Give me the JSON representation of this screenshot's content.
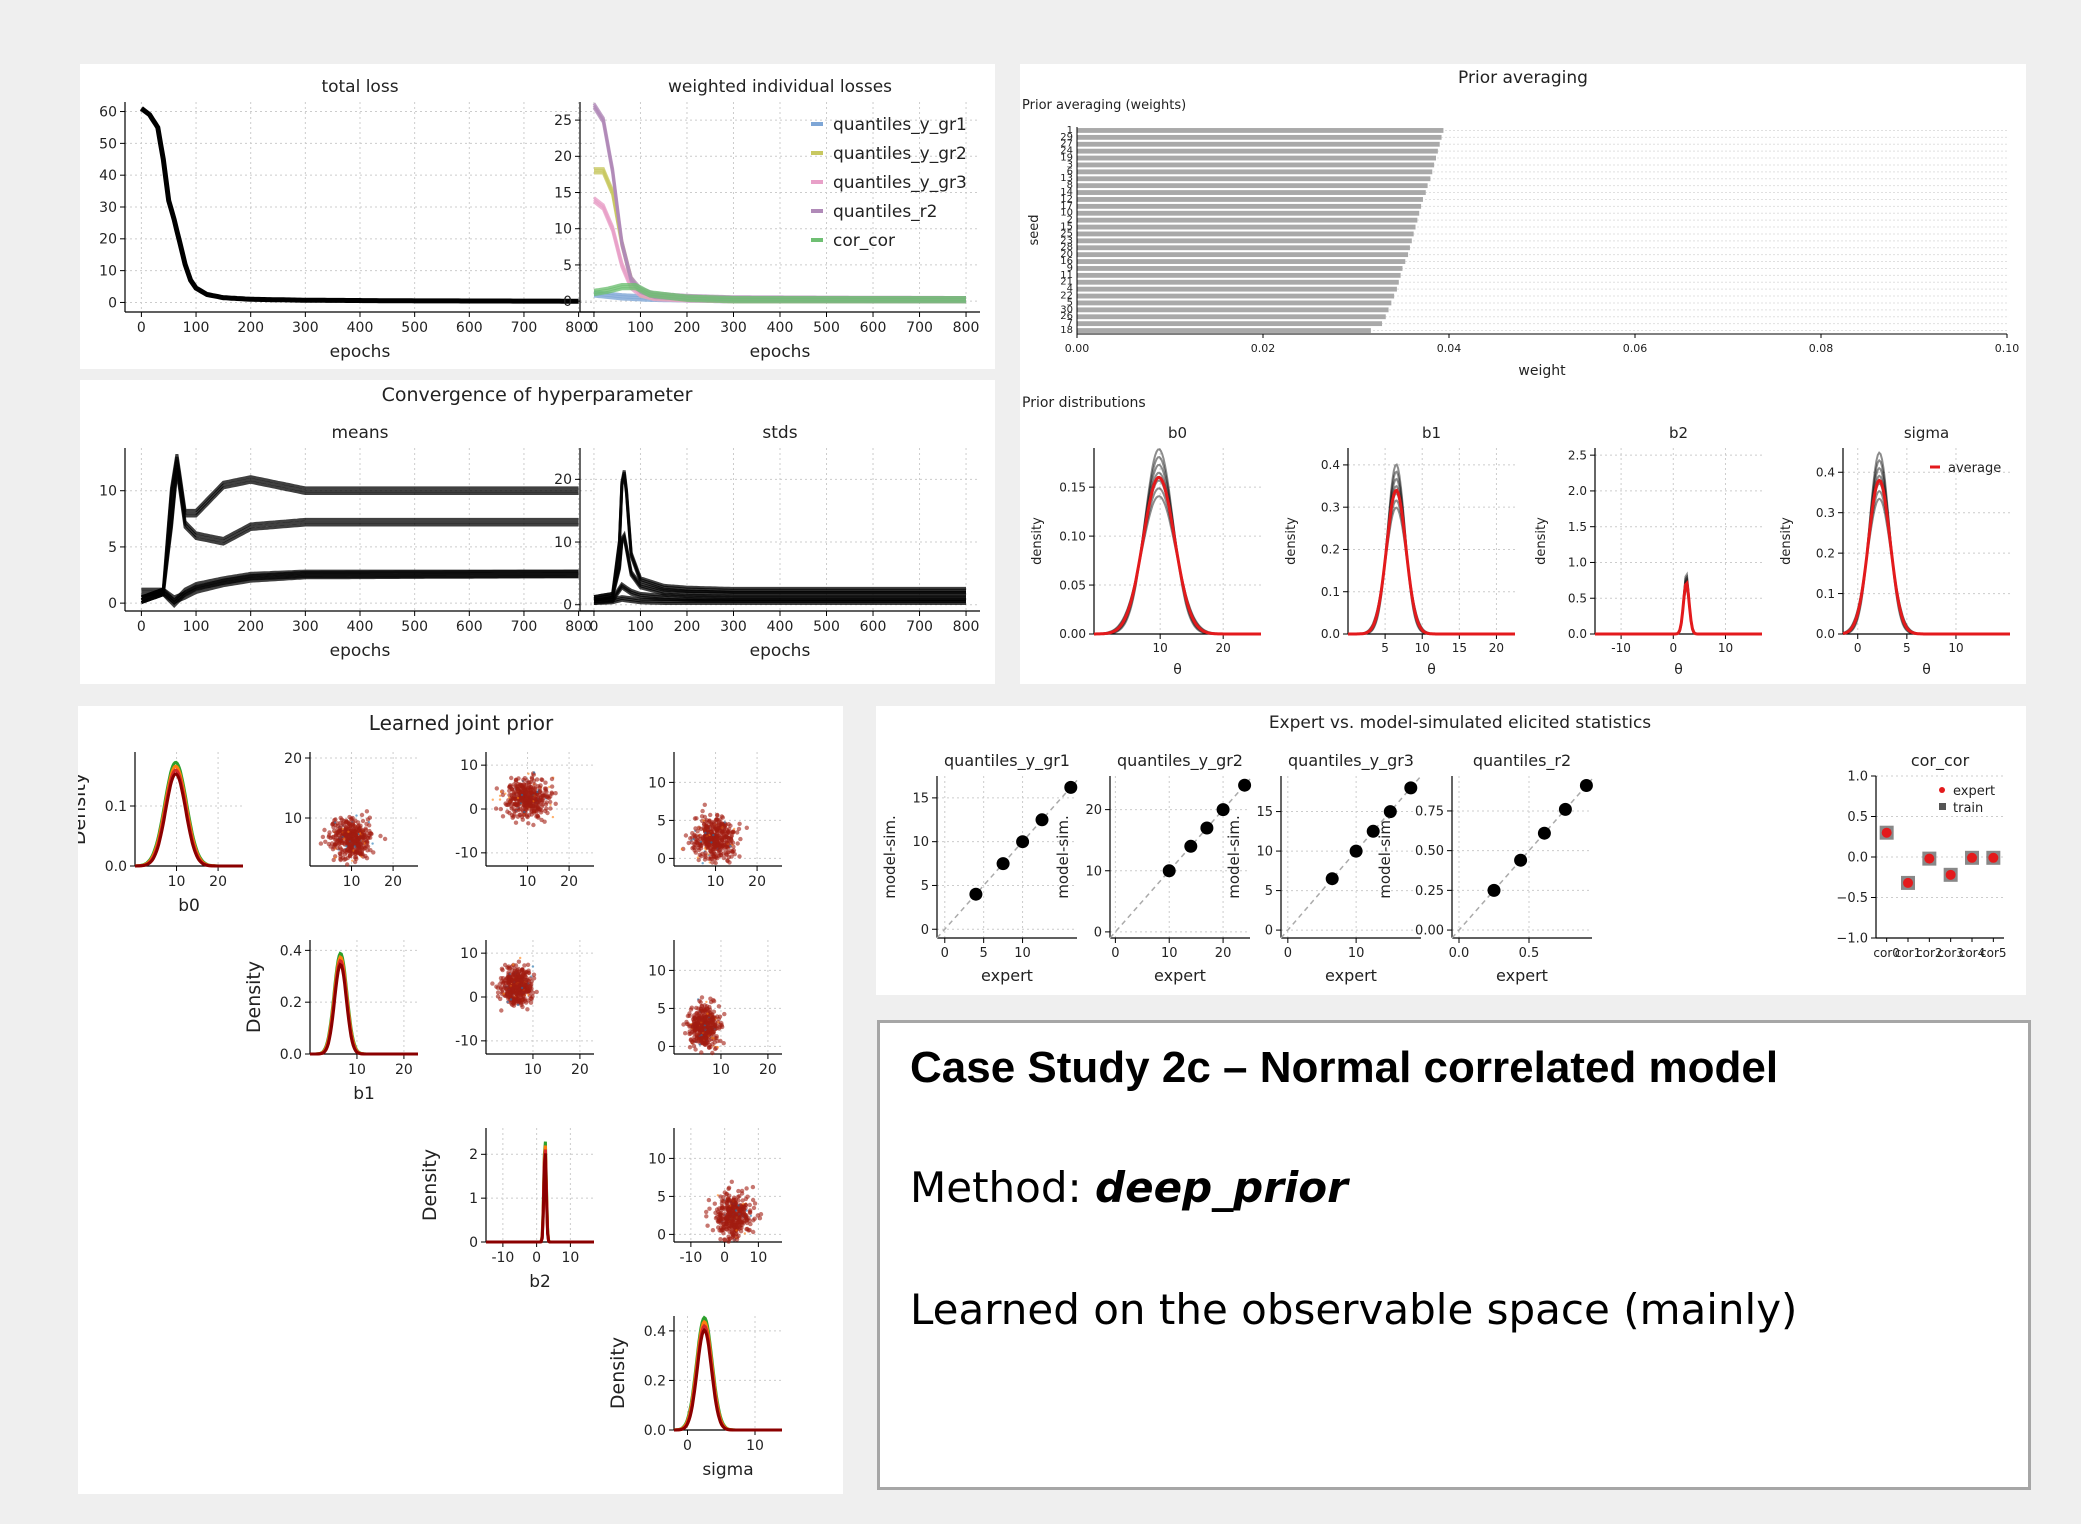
{
  "textbox": {
    "title": "Case Study 2c – Normal correlated model",
    "method_label": "Method: ",
    "method_value": "deep_prior",
    "note": "Learned on the observable space (mainly)"
  },
  "colors": {
    "grid": "#cccccc",
    "black": "#000000",
    "red": "#e31a1c",
    "gray": "#a9a9a9"
  },
  "chart_data": [
    {
      "id": "total_loss",
      "type": "line",
      "title": "total loss",
      "xlabel": "epochs",
      "ylabel": "",
      "xlim": [
        -30,
        830
      ],
      "ylim": [
        -3,
        63
      ],
      "xticks": [
        0,
        100,
        200,
        300,
        400,
        500,
        600,
        700,
        800
      ],
      "yticks": [
        0,
        10,
        20,
        30,
        40,
        50,
        60
      ],
      "series": [
        {
          "x": [
            0,
            15,
            30,
            40,
            50,
            60,
            70,
            80,
            90,
            100,
            120,
            150,
            200,
            300,
            500,
            800
          ],
          "y": [
            61,
            59,
            55,
            45,
            32,
            26,
            19,
            12,
            7,
            4.5,
            2.5,
            1.5,
            1,
            0.7,
            0.5,
            0.4
          ]
        }
      ]
    },
    {
      "id": "weighted_losses",
      "type": "line",
      "title": "weighted individual losses",
      "xlabel": "epochs",
      "ylabel": "",
      "xlim": [
        -30,
        830
      ],
      "ylim": [
        -1.5,
        27.5
      ],
      "xticks": [
        0,
        100,
        200,
        300,
        400,
        500,
        600,
        700,
        800
      ],
      "yticks": [
        0,
        5,
        10,
        15,
        20,
        25
      ],
      "legend": [
        "quantiles_y_gr1",
        "quantiles_y_gr2",
        "quantiles_y_gr3",
        "quantiles_r2",
        "cor_cor"
      ],
      "series": [
        {
          "name": "quantiles_y_gr1",
          "color": "#7ea6d6",
          "x": [
            0,
            30,
            60,
            90,
            120,
            200,
            300,
            800
          ],
          "y": [
            1,
            0.8,
            0.6,
            0.5,
            0.4,
            0.3,
            0.2,
            0.2
          ]
        },
        {
          "name": "quantiles_y_gr2",
          "color": "#c8c860",
          "x": [
            0,
            20,
            40,
            60,
            80,
            100,
            130,
            200,
            300,
            800
          ],
          "y": [
            18,
            18,
            15,
            8,
            3,
            1,
            0.6,
            0.4,
            0.2,
            0.2
          ]
        },
        {
          "name": "quantiles_y_gr3",
          "color": "#e8a0c8",
          "x": [
            0,
            20,
            40,
            60,
            80,
            100,
            130,
            200,
            300,
            800
          ],
          "y": [
            14,
            13,
            10,
            5,
            2,
            1,
            0.5,
            0.3,
            0.2,
            0.2
          ]
        },
        {
          "name": "quantiles_r2",
          "color": "#b08ab8",
          "x": [
            0,
            20,
            40,
            60,
            80,
            100,
            130,
            200,
            300,
            800
          ],
          "y": [
            27,
            25,
            18,
            8,
            3,
            1.5,
            0.8,
            0.5,
            0.3,
            0.2
          ]
        },
        {
          "name": "cor_cor",
          "color": "#6fbf73",
          "x": [
            0,
            30,
            60,
            90,
            120,
            200,
            300,
            800
          ],
          "y": [
            1.2,
            1.5,
            2,
            2,
            1,
            0.4,
            0.2,
            0.2
          ]
        }
      ]
    },
    {
      "id": "prior_weights",
      "type": "bar",
      "orientation": "horizontal",
      "title": "Prior averaging",
      "subtitle": "Prior averaging (weights)",
      "xlabel": "weight",
      "ylabel": "seed",
      "xlim": [
        0,
        0.1
      ],
      "xticks": [
        "0.00",
        "0.02",
        "0.04",
        "0.06",
        "0.08",
        "0.10"
      ],
      "categories": [
        "1",
        "29",
        "27",
        "24",
        "19",
        "3",
        "6",
        "13",
        "8",
        "14",
        "12",
        "17",
        "10",
        "2",
        "15",
        "25",
        "23",
        "28",
        "20",
        "16",
        "9",
        "11",
        "21",
        "4",
        "22",
        "5",
        "30",
        "26",
        "7",
        "18"
      ],
      "values": [
        0.0394,
        0.0392,
        0.039,
        0.0388,
        0.0386,
        0.0384,
        0.0382,
        0.038,
        0.0377,
        0.0375,
        0.0372,
        0.037,
        0.0368,
        0.0366,
        0.0364,
        0.0362,
        0.036,
        0.0358,
        0.0356,
        0.0353,
        0.035,
        0.0348,
        0.0346,
        0.0344,
        0.0341,
        0.0338,
        0.0335,
        0.0332,
        0.0328,
        0.0316
      ]
    },
    {
      "id": "means",
      "type": "line",
      "title": "means",
      "supertitle": "Convergence of hyperparameter",
      "xlabel": "epochs",
      "xlim": [
        -30,
        830
      ],
      "ylim": [
        -0.7,
        13.8
      ],
      "xticks": [
        0,
        100,
        200,
        300,
        400,
        500,
        600,
        700,
        800
      ],
      "yticks": [
        0,
        5,
        10
      ],
      "series": [
        {
          "x": [
            0,
            40,
            55,
            65,
            80,
            100,
            150,
            200,
            300,
            800
          ],
          "y": [
            0.3,
            1,
            10,
            13,
            8,
            8,
            10.5,
            11,
            10,
            10
          ]
        },
        {
          "x": [
            0,
            40,
            55,
            65,
            80,
            100,
            150,
            200,
            300,
            800
          ],
          "y": [
            0.3,
            1,
            7,
            12,
            7,
            6,
            5.5,
            6.8,
            7.2,
            7.2
          ]
        },
        {
          "x": [
            0,
            40,
            60,
            80,
            100,
            150,
            200,
            300,
            800
          ],
          "y": [
            0.3,
            1,
            0,
            1,
            1.5,
            2,
            2.4,
            2.6,
            2.6
          ]
        },
        {
          "x": [
            0,
            40,
            60,
            80,
            100,
            150,
            200,
            300,
            800
          ],
          "y": [
            1,
            1,
            0.3,
            0.7,
            1.2,
            1.8,
            2.2,
            2.5,
            2.6
          ]
        }
      ]
    },
    {
      "id": "stds",
      "type": "line",
      "title": "stds",
      "xlabel": "epochs",
      "xlim": [
        -30,
        830
      ],
      "ylim": [
        -1,
        25
      ],
      "xticks": [
        0,
        100,
        200,
        300,
        400,
        500,
        600,
        700,
        800
      ],
      "yticks": [
        0,
        10,
        20
      ],
      "series": [
        {
          "x": [
            0,
            40,
            55,
            62,
            70,
            80,
            100,
            150,
            200,
            300,
            800
          ],
          "y": [
            1,
            1.5,
            10,
            23,
            18,
            8,
            4,
            2.8,
            2.5,
            2.3,
            2.3
          ]
        },
        {
          "x": [
            0,
            40,
            55,
            62,
            70,
            80,
            100,
            150,
            200,
            300,
            800
          ],
          "y": [
            1,
            1.5,
            6,
            12,
            9,
            5,
            3,
            2,
            1.8,
            1.7,
            1.7
          ]
        },
        {
          "x": [
            0,
            40,
            60,
            80,
            100,
            150,
            200,
            300,
            800
          ],
          "y": [
            0.5,
            0.8,
            3,
            2,
            1.5,
            1.2,
            1,
            0.9,
            0.9
          ]
        },
        {
          "x": [
            0,
            40,
            60,
            80,
            100,
            150,
            200,
            300,
            800
          ],
          "y": [
            0.5,
            0.6,
            1,
            0.8,
            0.6,
            0.5,
            0.5,
            0.5,
            0.5
          ]
        }
      ]
    },
    {
      "id": "prior_distributions",
      "type": "line",
      "title": "Prior distributions",
      "xlabel": "θ",
      "ylabel": "density",
      "legend": [
        "average"
      ],
      "panels": [
        {
          "name": "b0",
          "xlim": [
            -0.5,
            26
          ],
          "ylim": [
            0,
            0.19
          ],
          "xticks": [
            10,
            20
          ],
          "yticks": [
            "0.00",
            "0.05",
            "0.10",
            "0.15"
          ],
          "mu": 9.8,
          "sigma": 2.5,
          "peak": 0.16
        },
        {
          "name": "b1",
          "xlim": [
            0,
            22.5
          ],
          "ylim": [
            0,
            0.44
          ],
          "xticks": [
            5,
            10,
            15,
            20
          ],
          "yticks": [
            "0.0",
            "0.1",
            "0.2",
            "0.3",
            "0.4"
          ],
          "mu": 6.5,
          "sigma": 1.3,
          "peak": 0.34
        },
        {
          "name": "b2",
          "xlim": [
            -15,
            17
          ],
          "ylim": [
            0,
            2.6
          ],
          "xticks": [
            -10,
            0,
            10
          ],
          "yticks": [
            "0.0",
            "0.5",
            "1.0",
            "1.5",
            "2.0",
            "2.5"
          ],
          "mu": 2.5,
          "sigma": 0.55,
          "peak": 0.72
        },
        {
          "name": "sigma",
          "xlim": [
            -1.5,
            15.5
          ],
          "ylim": [
            0,
            0.46
          ],
          "xticks": [
            0,
            5,
            10
          ],
          "yticks": [
            "0.0",
            "0.1",
            "0.2",
            "0.3",
            "0.4"
          ],
          "mu": 2.2,
          "sigma": 1.1,
          "peak": 0.38
        }
      ]
    },
    {
      "id": "joint_prior",
      "type": "scatter",
      "title": "Learned joint prior",
      "ylabel": "Density",
      "variables": [
        "b0",
        "b1",
        "b2",
        "sigma"
      ]
    },
    {
      "id": "elicited_stats",
      "type": "scatter",
      "title": "Expert vs. model-simulated elicited statistics",
      "xlabel": "expert",
      "ylabel": "model-sim.",
      "panels": [
        {
          "name": "quantiles_y_gr1",
          "xlim": [
            -1,
            17
          ],
          "ylim": [
            -1,
            17.5
          ],
          "xticks": [
            0,
            5,
            10
          ],
          "yticks": [
            0,
            5,
            10,
            15
          ],
          "points": [
            4,
            7.5,
            10,
            12.5,
            16.2
          ]
        },
        {
          "name": "quantiles_y_gr2",
          "xlim": [
            -1,
            25
          ],
          "ylim": [
            -1,
            25.5
          ],
          "xticks": [
            0,
            10,
            20
          ],
          "yticks": [
            0,
            10,
            20
          ],
          "points": [
            10,
            14,
            17,
            20,
            24
          ]
        },
        {
          "name": "quantiles_y_gr3",
          "xlim": [
            -1,
            19.5
          ],
          "ylim": [
            -1,
            19.5
          ],
          "xticks": [
            0,
            10
          ],
          "yticks": [
            0,
            5,
            10,
            15
          ],
          "points": [
            6.5,
            10,
            12.5,
            15,
            18
          ]
        },
        {
          "name": "quantiles_r2",
          "xlim": [
            -0.05,
            0.95
          ],
          "ylim": [
            -0.05,
            0.97
          ],
          "xticks": [
            "0.0",
            "0.5"
          ],
          "yticks": [
            "0.00",
            "0.25",
            "0.50",
            "0.75"
          ],
          "points": [
            0.25,
            0.44,
            0.61,
            0.76,
            0.91
          ]
        }
      ],
      "cor_panel": {
        "name": "cor_cor",
        "ylim": [
          -1,
          1
        ],
        "yticks": [
          "−1.0",
          "−0.5",
          "0.0",
          "0.5",
          "1.0"
        ],
        "categories": [
          "cor0",
          "cor1",
          "cor2",
          "cor3",
          "cor4",
          "cor5"
        ],
        "expert": [
          0.3,
          -0.32,
          -0.02,
          -0.22,
          -0.01,
          -0.01
        ],
        "train": [
          0.3,
          -0.32,
          -0.02,
          -0.22,
          -0.01,
          -0.01
        ],
        "legend": [
          "expert",
          "train"
        ]
      }
    }
  ]
}
